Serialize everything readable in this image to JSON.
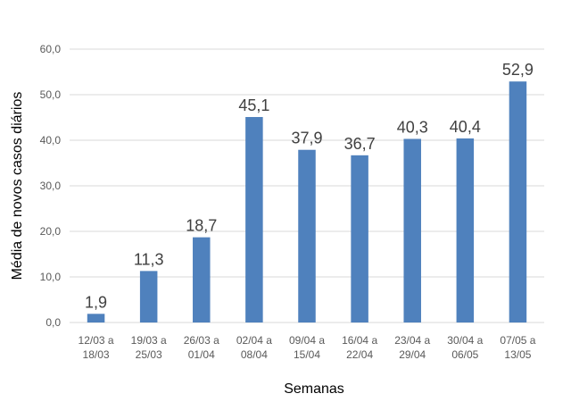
{
  "chart_data": {
    "type": "bar",
    "categories": [
      [
        "12/03 a",
        "18/03"
      ],
      [
        "19/03 a",
        "25/03"
      ],
      [
        "26/03 a",
        "01/04"
      ],
      [
        "02/04 a",
        "08/04"
      ],
      [
        "09/04 a",
        "15/04"
      ],
      [
        "16/04 a",
        "22/04"
      ],
      [
        "23/04 a",
        "29/04"
      ],
      [
        "30/04 a",
        "06/05"
      ],
      [
        "07/05 a",
        "13/05"
      ]
    ],
    "values": [
      1.9,
      11.3,
      18.7,
      45.1,
      37.9,
      36.7,
      40.3,
      40.4,
      52.9
    ],
    "data_labels": [
      "1,9",
      "11,3",
      "18,7",
      "45,1",
      "37,9",
      "36,7",
      "40,3",
      "40,4",
      "52,9"
    ],
    "y_ticks": [
      0,
      10,
      20,
      30,
      40,
      50,
      60
    ],
    "y_tick_labels": [
      "0,0",
      "10,0",
      "20,0",
      "30,0",
      "40,0",
      "50,0",
      "60,0"
    ],
    "ylim": [
      0,
      60
    ],
    "xlabel": "Semanas",
    "ylabel": "Média de novos casos diários",
    "grid": true,
    "legend": "none",
    "bar_color": "#4f81bd",
    "grid_color": "#d9d9d9"
  }
}
